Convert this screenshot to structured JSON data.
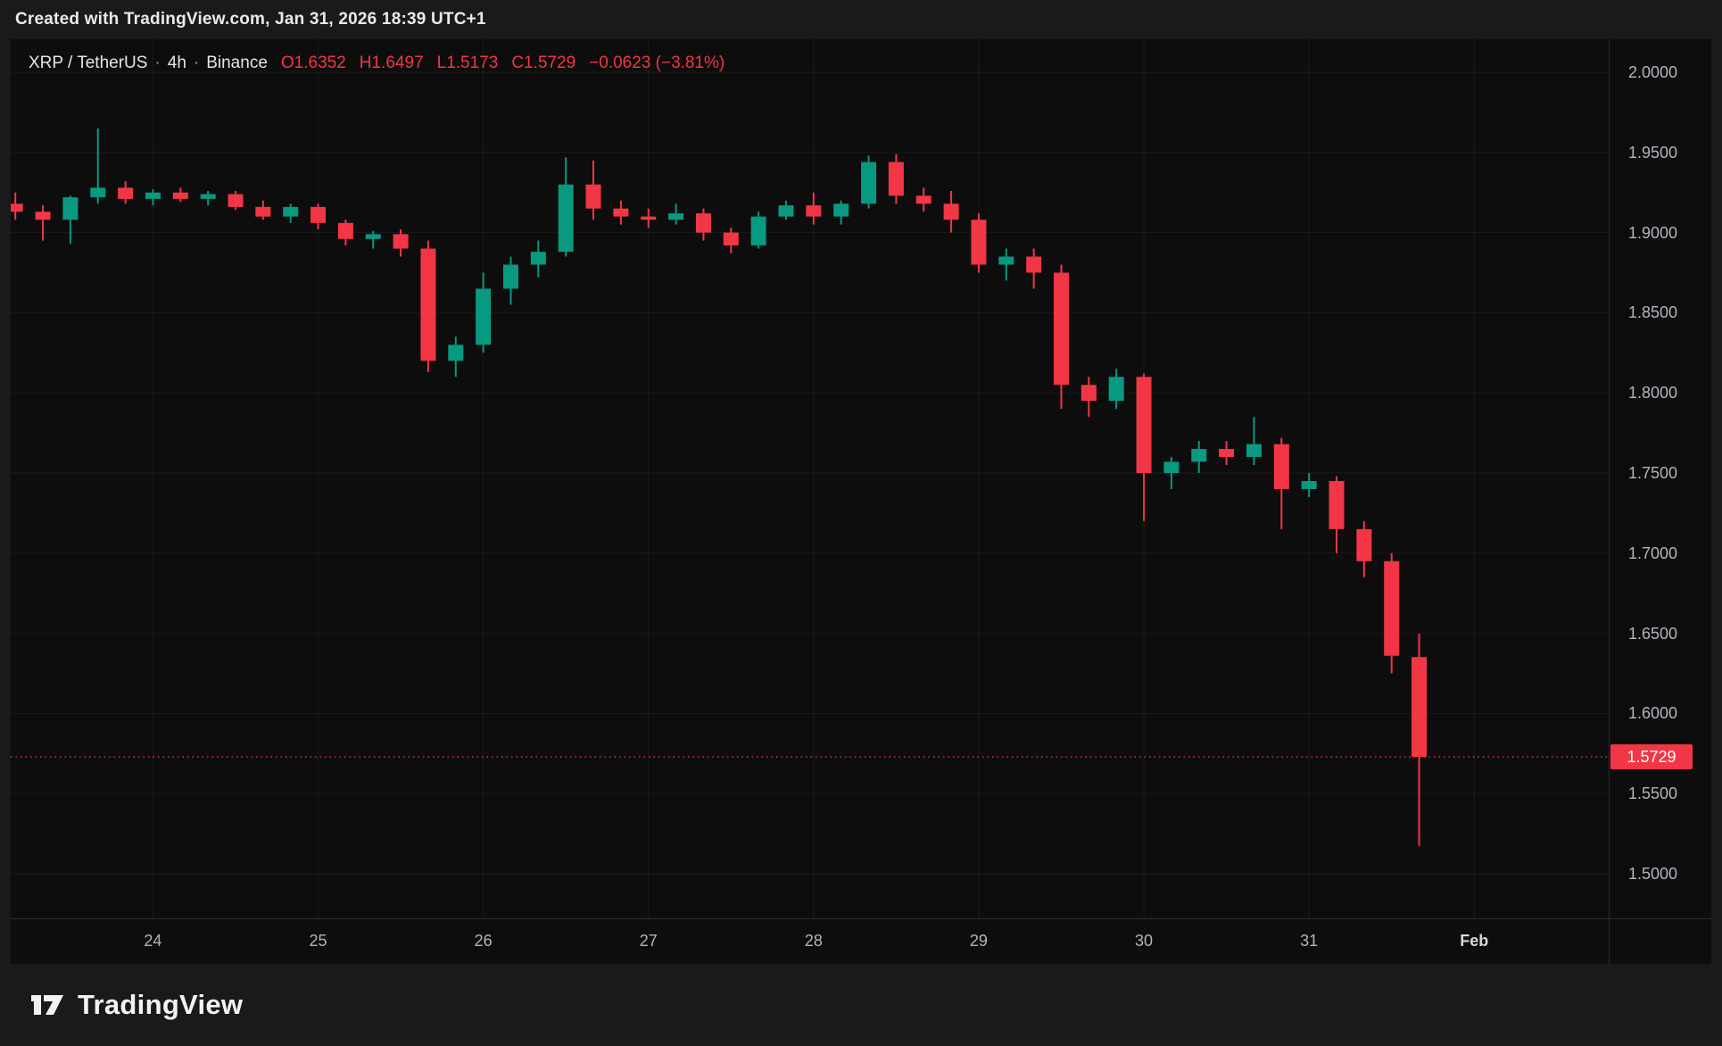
{
  "attribution": "Created with TradingView.com, Jan 31, 2026 18:39 UTC+1",
  "legend": {
    "symbol": "XRP / TetherUS",
    "separator": "·",
    "interval": "4h",
    "exchange": "Binance",
    "open": "O1.6352",
    "high": "H1.6497",
    "low": "L1.5173",
    "close": "C1.5729",
    "change": "−0.0623 (−3.81%)"
  },
  "footer": {
    "brand": "TradingView"
  },
  "chart_data": {
    "type": "candlestick",
    "title": "XRP / TetherUS · 4h · Binance",
    "interval_hours": 4,
    "price_axis": {
      "min": 1.5,
      "max": 2.0,
      "tick_step": 0.05,
      "ticks": [
        "2.0000",
        "1.9500",
        "1.9000",
        "1.8500",
        "1.8000",
        "1.7500",
        "1.7000",
        "1.6500",
        "1.6000",
        "1.5500",
        "1.5000"
      ]
    },
    "time_axis": {
      "ticks": [
        {
          "slot": 5,
          "label": "24"
        },
        {
          "slot": 11,
          "label": "25"
        },
        {
          "slot": 17,
          "label": "26"
        },
        {
          "slot": 23,
          "label": "27"
        },
        {
          "slot": 29,
          "label": "28"
        },
        {
          "slot": 35,
          "label": "29"
        },
        {
          "slot": 41,
          "label": "30"
        },
        {
          "slot": 47,
          "label": "31"
        },
        {
          "slot": 53,
          "label": "Feb",
          "bold": true
        }
      ]
    },
    "last_price": {
      "value": 1.5729,
      "label": "1.5729"
    },
    "colors": {
      "up": "#089981",
      "down": "#f23645",
      "grid": "rgba(255,255,255,0.055)",
      "separator": "#2a2e39",
      "axis_text": "#b2b5be"
    },
    "candles": {
      "columns": [
        "open",
        "high",
        "low",
        "close"
      ],
      "rows": [
        [
          1.918,
          1.925,
          1.908,
          1.913
        ],
        [
          1.913,
          1.917,
          1.895,
          1.908
        ],
        [
          1.908,
          1.923,
          1.893,
          1.922
        ],
        [
          1.922,
          1.965,
          1.918,
          1.928
        ],
        [
          1.928,
          1.932,
          1.918,
          1.921
        ],
        [
          1.921,
          1.927,
          1.917,
          1.925
        ],
        [
          1.925,
          1.928,
          1.919,
          1.921
        ],
        [
          1.921,
          1.926,
          1.917,
          1.924
        ],
        [
          1.924,
          1.926,
          1.914,
          1.916
        ],
        [
          1.916,
          1.92,
          1.908,
          1.91
        ],
        [
          1.91,
          1.918,
          1.906,
          1.916
        ],
        [
          1.916,
          1.918,
          1.902,
          1.906
        ],
        [
          1.906,
          1.908,
          1.892,
          1.896
        ],
        [
          1.896,
          1.901,
          1.89,
          1.899
        ],
        [
          1.899,
          1.902,
          1.885,
          1.89
        ],
        [
          1.89,
          1.895,
          1.813,
          1.82
        ],
        [
          1.82,
          1.835,
          1.81,
          1.83
        ],
        [
          1.83,
          1.875,
          1.825,
          1.865
        ],
        [
          1.865,
          1.885,
          1.855,
          1.88
        ],
        [
          1.88,
          1.895,
          1.872,
          1.888
        ],
        [
          1.888,
          1.947,
          1.885,
          1.93
        ],
        [
          1.93,
          1.945,
          1.908,
          1.915
        ],
        [
          1.915,
          1.92,
          1.905,
          1.91
        ],
        [
          1.91,
          1.915,
          1.903,
          1.908
        ],
        [
          1.908,
          1.918,
          1.905,
          1.912
        ],
        [
          1.912,
          1.915,
          1.895,
          1.9
        ],
        [
          1.9,
          1.903,
          1.887,
          1.892
        ],
        [
          1.892,
          1.913,
          1.89,
          1.91
        ],
        [
          1.91,
          1.92,
          1.908,
          1.917
        ],
        [
          1.917,
          1.925,
          1.905,
          1.91
        ],
        [
          1.91,
          1.92,
          1.905,
          1.918
        ],
        [
          1.918,
          1.948,
          1.915,
          1.944
        ],
        [
          1.944,
          1.949,
          1.918,
          1.923
        ],
        [
          1.923,
          1.928,
          1.913,
          1.918
        ],
        [
          1.918,
          1.926,
          1.9,
          1.908
        ],
        [
          1.908,
          1.912,
          1.875,
          1.88
        ],
        [
          1.88,
          1.89,
          1.87,
          1.885
        ],
        [
          1.885,
          1.89,
          1.865,
          1.875
        ],
        [
          1.875,
          1.88,
          1.79,
          1.805
        ],
        [
          1.805,
          1.81,
          1.785,
          1.795
        ],
        [
          1.795,
          1.815,
          1.79,
          1.81
        ],
        [
          1.81,
          1.812,
          1.72,
          1.75
        ],
        [
          1.75,
          1.76,
          1.74,
          1.757
        ],
        [
          1.757,
          1.77,
          1.75,
          1.765
        ],
        [
          1.765,
          1.77,
          1.755,
          1.76
        ],
        [
          1.76,
          1.785,
          1.755,
          1.768
        ],
        [
          1.768,
          1.772,
          1.715,
          1.74
        ],
        [
          1.74,
          1.75,
          1.735,
          1.745
        ],
        [
          1.745,
          1.748,
          1.7,
          1.715
        ],
        [
          1.715,
          1.72,
          1.685,
          1.695
        ],
        [
          1.695,
          1.7,
          1.625,
          1.636
        ],
        [
          1.6352,
          1.6497,
          1.5173,
          1.5729
        ]
      ]
    }
  }
}
